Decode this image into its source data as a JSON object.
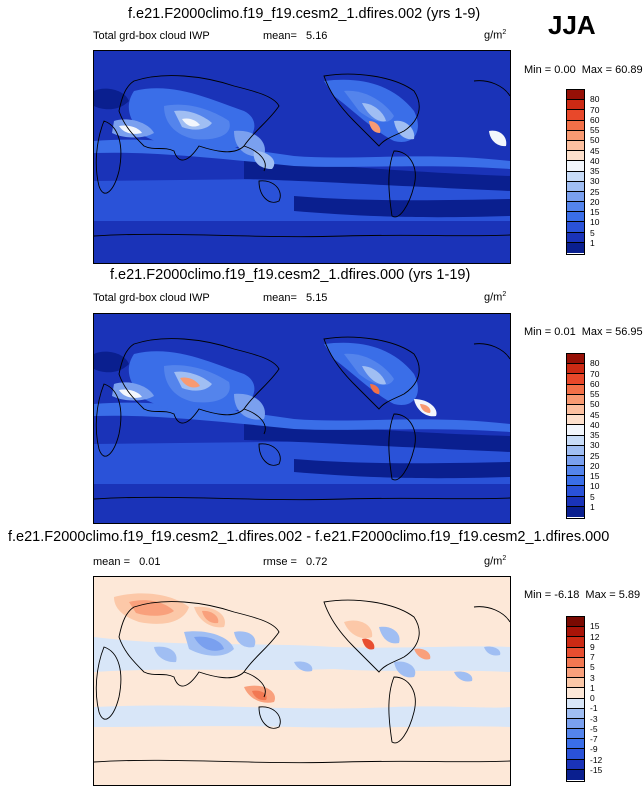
{
  "season": "JJA",
  "panels": [
    {
      "title": "f.e21.F2000climo.f19_f19.cesm2_1.dfires.002 (yrs 1-9)",
      "left_label": "Total grd-box cloud IWP",
      "mean_label": "mean=",
      "mean_value": "5.16",
      "units": "g/m",
      "units_exp": "2",
      "min_label": "Min =",
      "min_value": "0.00",
      "max_label": "Max =",
      "max_value": "60.89"
    },
    {
      "title": "f.e21.F2000climo.f19_f19.cesm2_1.dfires.000 (yrs 1-19)",
      "left_label": "Total grd-box cloud IWP",
      "mean_label": "mean=",
      "mean_value": "5.15",
      "units": "g/m",
      "units_exp": "2",
      "min_label": "Min =",
      "min_value": "0.01",
      "max_label": "Max =",
      "max_value": "56.95"
    },
    {
      "title": "f.e21.F2000climo.f19_f19.cesm2_1.dfires.002 - f.e21.F2000climo.f19_f19.cesm2_1.dfires.000",
      "left_label": "mean =",
      "left_value": "0.01",
      "rmse_label": "rmse =",
      "rmse_value": "0.72",
      "units": "g/m",
      "units_exp": "2",
      "min_label": "Min =",
      "min_value": "-6.18",
      "max_label": "Max =",
      "max_value": "5.89"
    }
  ],
  "chart_data": [
    {
      "type": "heatmap",
      "title": "f.e21.F2000climo.f19_f19.cesm2_1.dfires.002 (yrs 1-9)",
      "variable": "Total grd-box cloud IWP",
      "season": "JJA",
      "mean": 5.16,
      "min": 0.0,
      "max": 60.89,
      "units": "g/m2",
      "colorbar_levels": [
        1,
        5,
        10,
        15,
        20,
        25,
        30,
        35,
        40,
        45,
        50,
        55,
        60,
        70,
        80
      ],
      "colorbar_colors": [
        "#0a1f8f",
        "#1a33b8",
        "#2a52d8",
        "#3a6ee8",
        "#5484ec",
        "#7aa0ef",
        "#a0bef3",
        "#c8dcf8",
        "#f2f6fc",
        "#fde0cc",
        "#fcc0a0",
        "#f89a72",
        "#f27048",
        "#e8482a",
        "#cc2a14",
        "#961006"
      ],
      "cells": [
        {
          "region": "background_ocean",
          "value": 3
        },
        {
          "region": "tibetan_plateau_himalaya",
          "value": 40
        },
        {
          "region": "southeast_asia_monsoon",
          "value": 28
        },
        {
          "region": "india_monsoon",
          "value": 35
        },
        {
          "region": "western_pacific_warm_pool",
          "value": 22
        },
        {
          "region": "itcz_pacific",
          "value": 15
        },
        {
          "region": "north_america_west",
          "value": 45
        },
        {
          "region": "central_america",
          "value": 38
        },
        {
          "region": "southern_ocean",
          "value": 5
        },
        {
          "region": "sahara_arabia",
          "value": 1
        }
      ]
    },
    {
      "type": "heatmap",
      "title": "f.e21.F2000climo.f19_f19.cesm2_1.dfires.000 (yrs 1-19)",
      "variable": "Total grd-box cloud IWP",
      "season": "JJA",
      "mean": 5.15,
      "min": 0.01,
      "max": 56.95,
      "units": "g/m2",
      "colorbar_levels": [
        1,
        5,
        10,
        15,
        20,
        25,
        30,
        35,
        40,
        45,
        50,
        55,
        60,
        70,
        80
      ],
      "colorbar_colors": [
        "#0a1f8f",
        "#1a33b8",
        "#2a52d8",
        "#3a6ee8",
        "#5484ec",
        "#7aa0ef",
        "#a0bef3",
        "#c8dcf8",
        "#f2f6fc",
        "#fde0cc",
        "#fcc0a0",
        "#f89a72",
        "#f27048",
        "#e8482a",
        "#cc2a14",
        "#961006"
      ],
      "cells": [
        {
          "region": "background_ocean",
          "value": 3
        },
        {
          "region": "tibetan_plateau_himalaya",
          "value": 42
        },
        {
          "region": "southeast_asia_monsoon",
          "value": 27
        },
        {
          "region": "india_monsoon",
          "value": 33
        },
        {
          "region": "western_pacific_warm_pool",
          "value": 22
        },
        {
          "region": "itcz_pacific",
          "value": 15
        },
        {
          "region": "north_america_west",
          "value": 44
        },
        {
          "region": "central_america",
          "value": 40
        },
        {
          "region": "southern_ocean",
          "value": 5
        },
        {
          "region": "sahara_arabia",
          "value": 1
        }
      ]
    },
    {
      "type": "heatmap",
      "title": "f.e21.F2000climo.f19_f19.cesm2_1.dfires.002 - f.e21.F2000climo.f19_f19.cesm2_1.dfires.000",
      "season": "JJA",
      "mean": 0.01,
      "rmse": 0.72,
      "min": -6.18,
      "max": 5.89,
      "units": "g/m2",
      "colorbar_levels": [
        -15,
        -12,
        -9,
        -7,
        -5,
        -3,
        -1,
        0,
        1,
        3,
        5,
        7,
        9,
        12,
        15
      ],
      "colorbar_colors": [
        "#0a1f8f",
        "#1a33b8",
        "#2a52d8",
        "#3a6ee8",
        "#5484ec",
        "#7aa0ef",
        "#a0bef3",
        "#d8e6f8",
        "#fde8d8",
        "#fcc8a8",
        "#f9a07c",
        "#f27852",
        "#e84e30",
        "#cc2a14",
        "#a81408",
        "#7a0a02"
      ],
      "cells": [
        {
          "region": "background",
          "value": 0.5
        },
        {
          "region": "central_asia",
          "value": 4
        },
        {
          "region": "east_asia",
          "value": -3
        },
        {
          "region": "tibet",
          "value": 3
        },
        {
          "region": "maritime_continent",
          "value": 3
        },
        {
          "region": "north_america",
          "value": 2
        },
        {
          "region": "tropical_pacific",
          "value": -1
        },
        {
          "region": "southern_ocean",
          "value": -0.5
        }
      ]
    }
  ]
}
